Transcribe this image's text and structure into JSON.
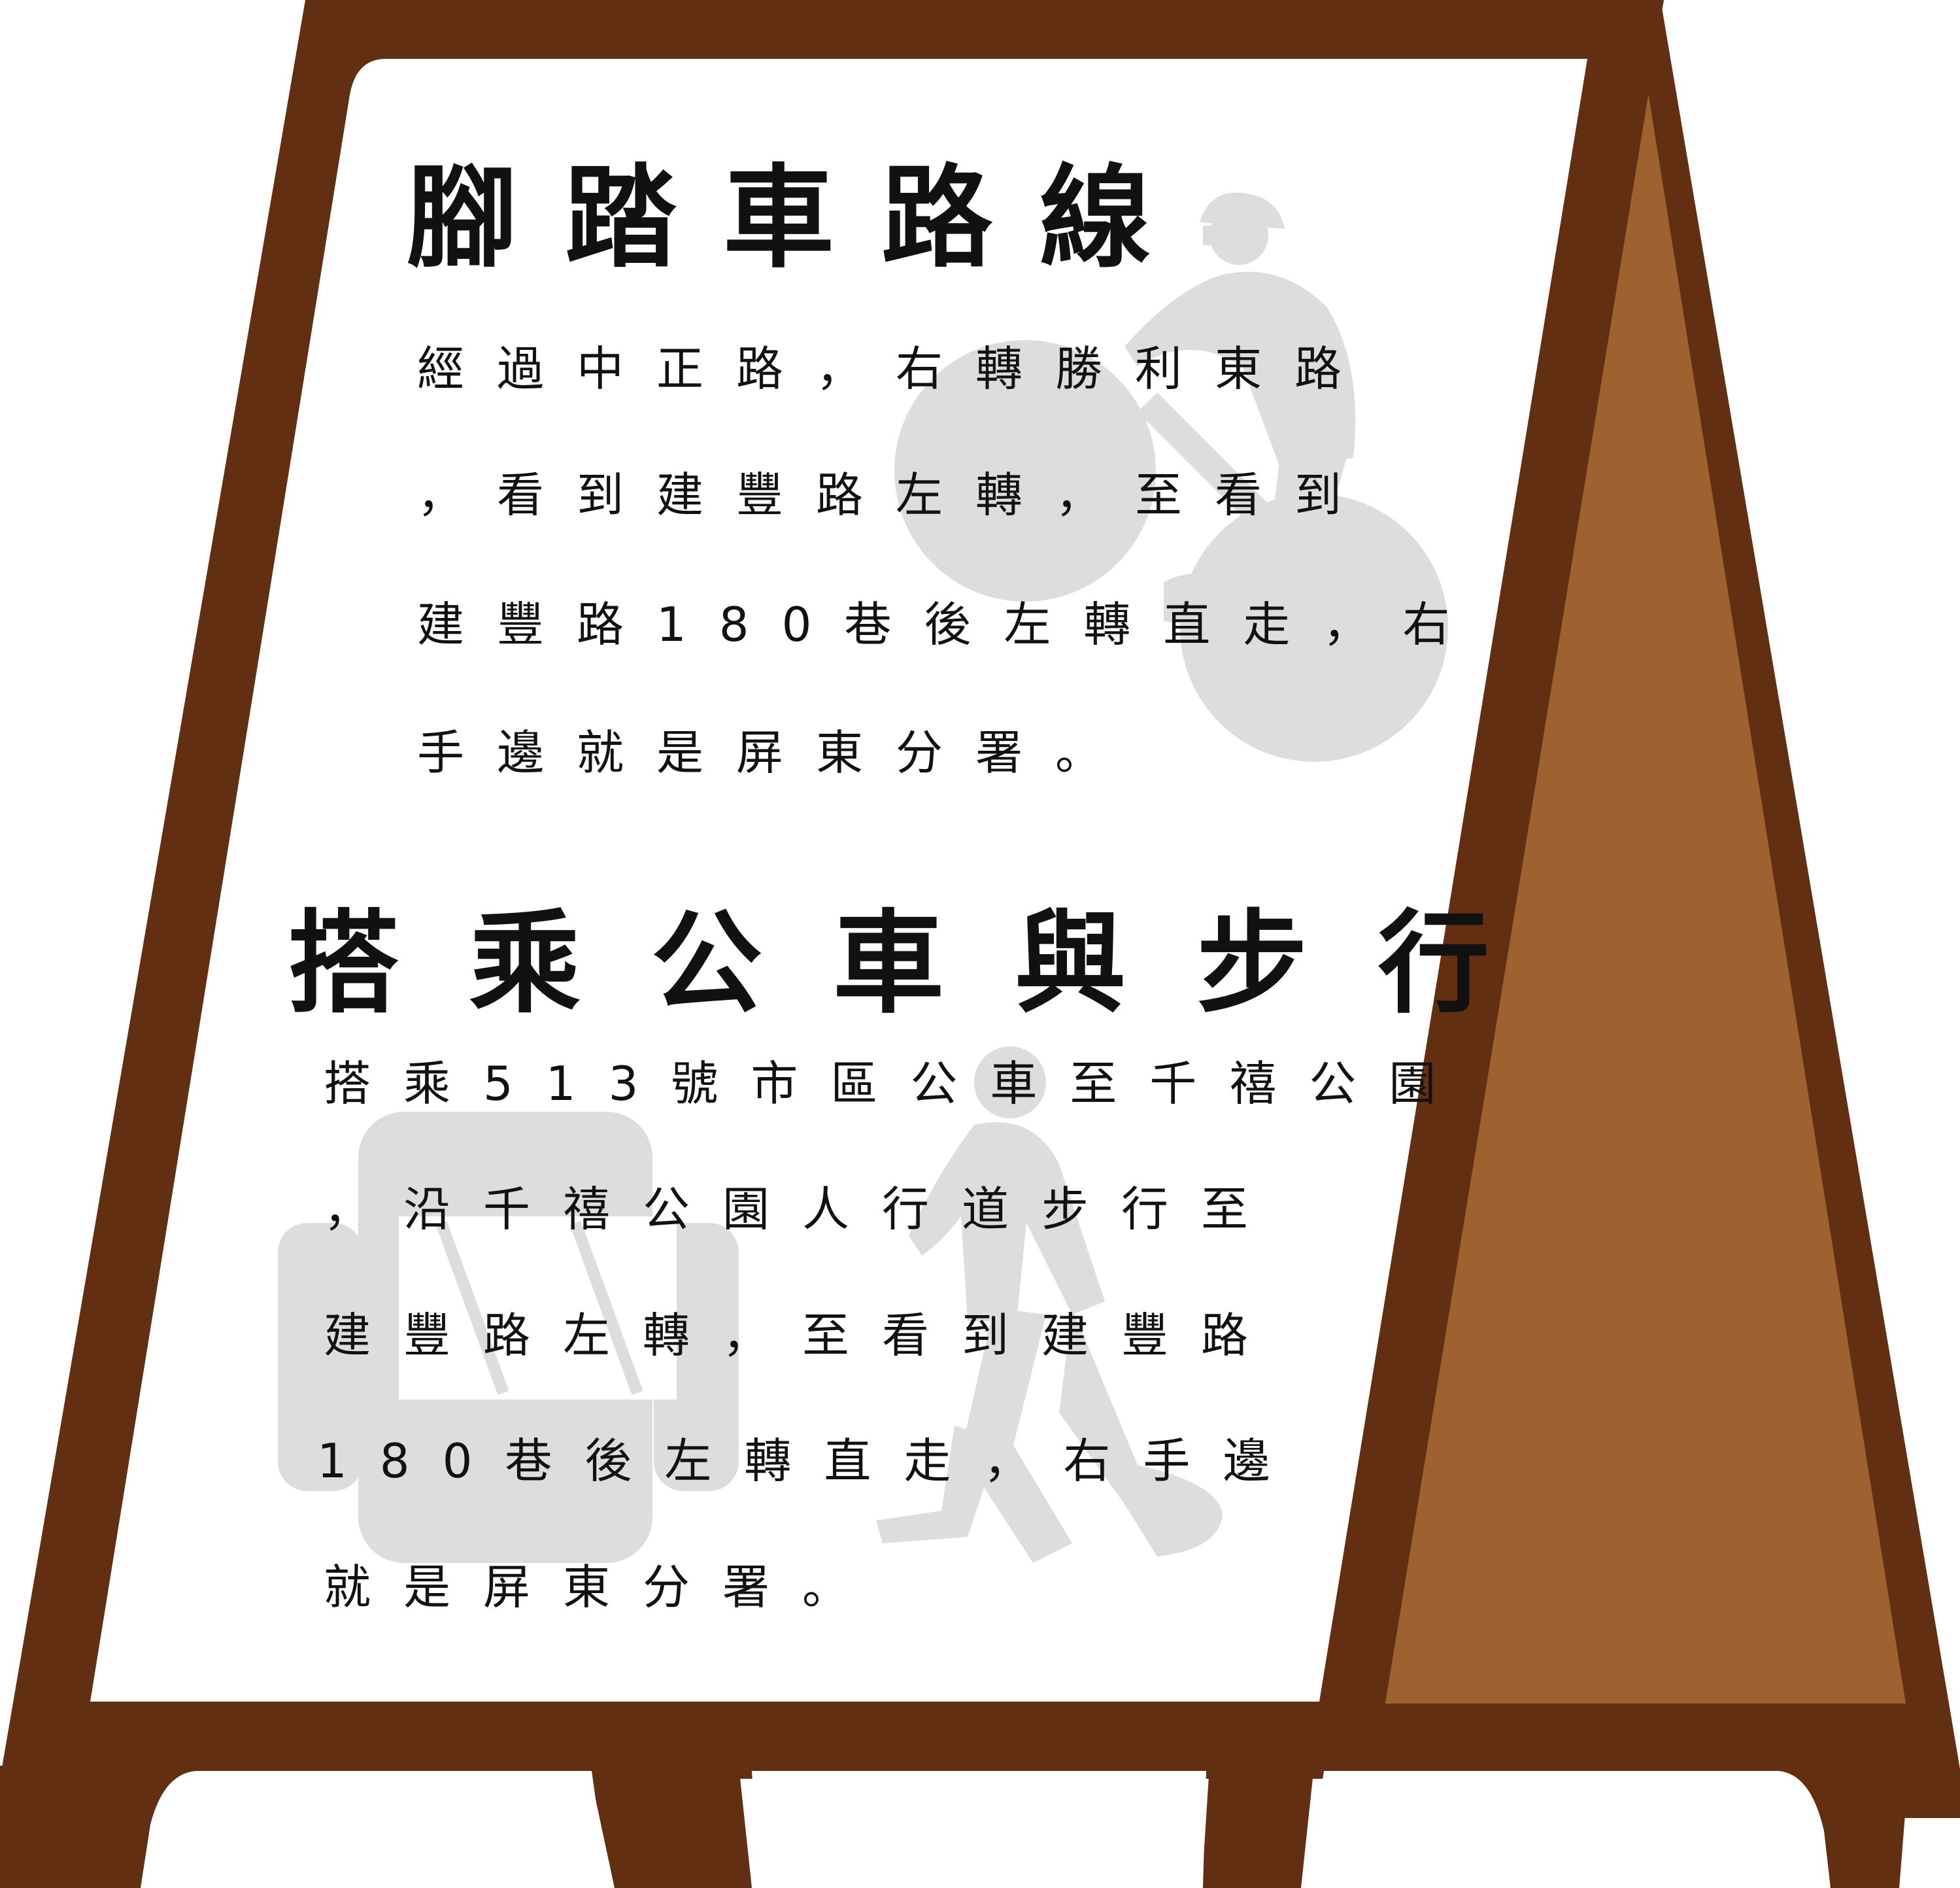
{
  "colors": {
    "frame": "#622f12",
    "back_panel": "#9e6130",
    "board_face": "#ffffff",
    "silhouette": "#dddddd",
    "text": "#111111"
  },
  "icons": [
    "cyclist-silhouette",
    "bus-silhouette",
    "pedestrian-silhouette"
  ],
  "section_bike": {
    "title": "腳踏車路線",
    "lines": [
      "經過中正路，右轉勝利東路",
      "，看到建豐路左轉，至看到",
      "建豐路180巷後左轉直走，右",
      "手邊就是屏東分署。"
    ]
  },
  "section_bus_walk": {
    "title": "搭乘公車與步行",
    "lines": [
      "搭乘513號市區公車至千禧公園",
      "，沿千禧公園人行道步行至",
      "建豐路左轉，至看到建豐路",
      "180巷後左轉直走，右手邊",
      "就是屏東分署。"
    ]
  }
}
